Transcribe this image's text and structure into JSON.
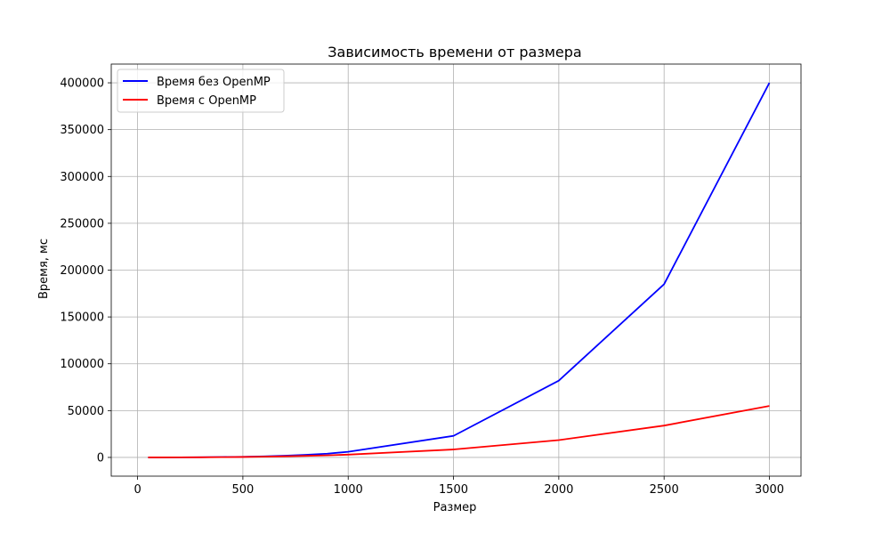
{
  "chart_data": {
    "type": "line",
    "title": "Зависимость времени от размера",
    "xlabel": "Размер",
    "ylabel": "Время, мс",
    "xlim": [
      -125,
      3150
    ],
    "ylim": [
      -20000,
      420000
    ],
    "xticks": [
      0,
      500,
      1000,
      1500,
      2000,
      2500,
      3000
    ],
    "yticks": [
      0,
      50000,
      100000,
      150000,
      200000,
      250000,
      300000,
      350000,
      400000
    ],
    "grid": true,
    "legend_position": "top-left",
    "series": [
      {
        "name": "Время без OpenMP",
        "color": "#0000ff",
        "x": [
          50,
          100,
          200,
          300,
          400,
          500,
          600,
          700,
          800,
          900,
          1000,
          1500,
          2000,
          2500,
          3000
        ],
        "y": [
          0,
          20,
          100,
          200,
          400,
          700,
          1100,
          1800,
          2800,
          4000,
          6000,
          23000,
          82000,
          185000,
          400000
        ]
      },
      {
        "name": "Время с OpenMP",
        "color": "#ff0000",
        "x": [
          50,
          100,
          200,
          300,
          400,
          500,
          600,
          700,
          800,
          900,
          1000,
          1500,
          2000,
          2500,
          3000
        ],
        "y": [
          0,
          10,
          60,
          150,
          300,
          500,
          800,
          1200,
          1700,
          2200,
          3000,
          8500,
          18500,
          34000,
          55000
        ]
      }
    ]
  }
}
